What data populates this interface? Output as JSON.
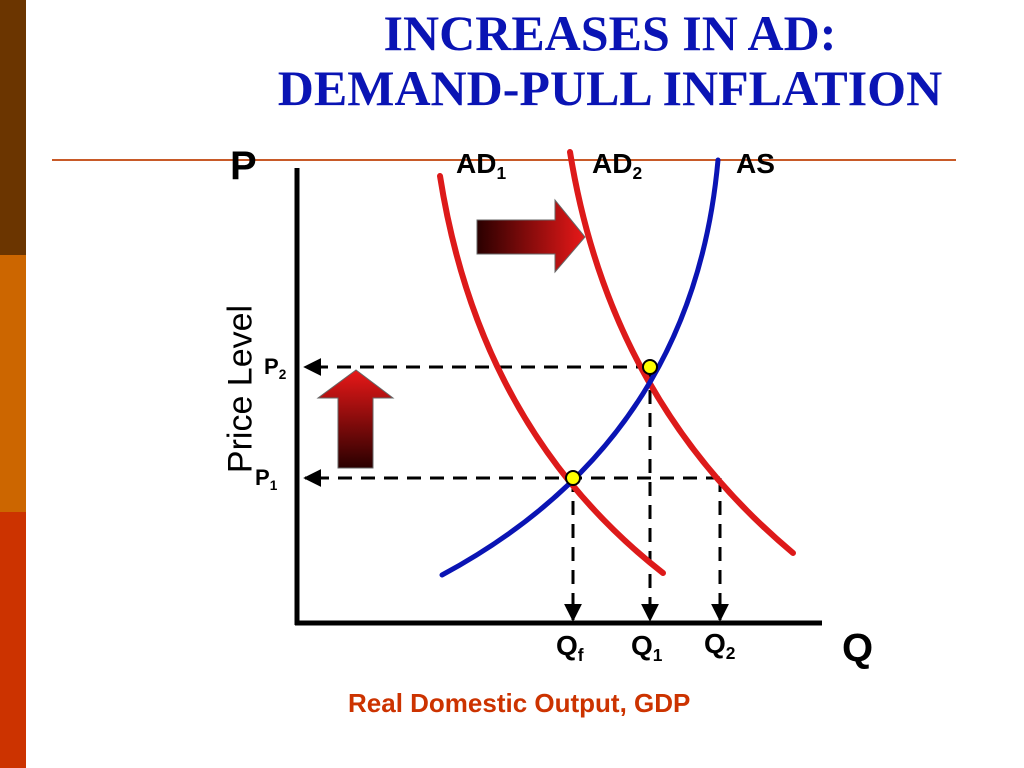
{
  "slide": {
    "title_line1": "INCREASES IN AD:",
    "title_line2": "DEMAND-PULL INFLATION"
  },
  "diagram": {
    "axis_y_letter": "P",
    "axis_x_letter": "Q",
    "y_axis_title": "Price Level",
    "x_axis_title": "Real Domestic Output, GDP",
    "curves": {
      "ad1": {
        "main": "AD",
        "sub": "1"
      },
      "ad2": {
        "main": "AD",
        "sub": "2"
      },
      "as": "AS"
    },
    "price_levels": {
      "p2": {
        "main": "P",
        "sub": "2"
      },
      "p1": {
        "main": "P",
        "sub": "1"
      }
    },
    "quantities": {
      "qf": {
        "main": "Q",
        "sub": "f"
      },
      "q1": {
        "main": "Q",
        "sub": "1"
      },
      "q2": {
        "main": "Q",
        "sub": "2"
      }
    }
  },
  "colors": {
    "title": "#0a14b4",
    "ad_curves": "#dd1a1a",
    "as_curve": "#0a14b4",
    "equilibrium_point": "#ffff00",
    "x_axis_title": "#cc3300",
    "sidebar": [
      "#6b3500",
      "#cc6600",
      "#cc3300"
    ]
  }
}
